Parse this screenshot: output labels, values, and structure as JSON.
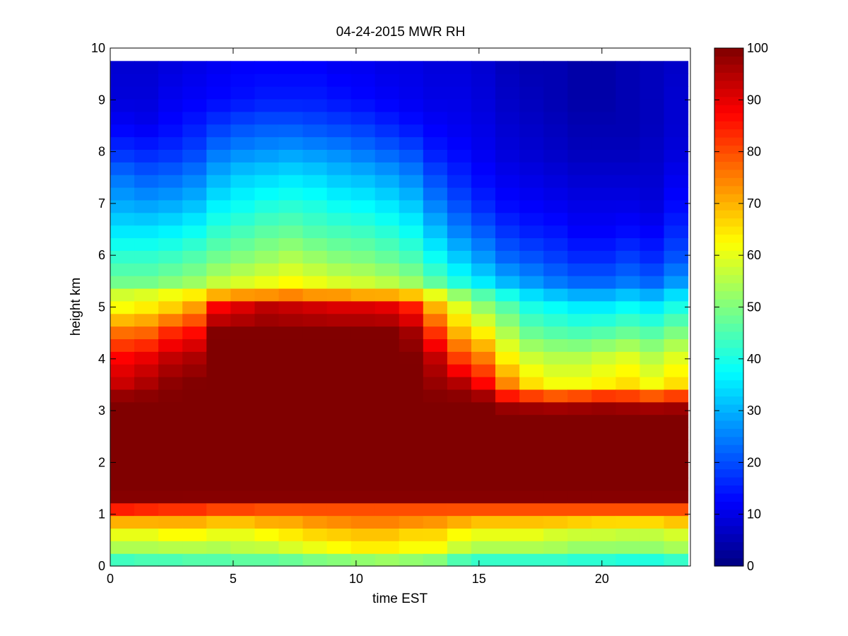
{
  "chart_data": {
    "type": "heatmap",
    "title": "04-24-2015 MWR RH",
    "xlabel": "time EST",
    "ylabel": "height km",
    "xlim": [
      0,
      23.6
    ],
    "ylim": [
      0,
      10
    ],
    "xticks": [
      0,
      5,
      10,
      15,
      20
    ],
    "yticks": [
      0,
      1,
      2,
      3,
      4,
      5,
      6,
      7,
      8,
      9,
      10
    ],
    "colorbar": {
      "colormap": "jet",
      "range": [
        0,
        100
      ],
      "ticks": [
        0,
        10,
        20,
        30,
        40,
        50,
        60,
        70,
        80,
        90,
        100
      ]
    },
    "data_extent": {
      "x": [
        0,
        23.5
      ],
      "y": [
        0,
        9.75
      ]
    },
    "time_bins": 24,
    "height_bins": 40,
    "profile_heights_km": [
      0,
      0.25,
      0.6,
      0.9,
      1.1,
      1.25,
      1.35,
      3.0,
      3.2,
      3.5,
      4.0,
      4.5,
      5.0,
      5.3,
      5.5,
      6.0,
      6.5,
      7.0,
      7.5,
      8.0,
      8.5,
      9.0,
      9.75
    ],
    "rh_profiles_percent": {
      "0": [
        36,
        52,
        60,
        72,
        85,
        93,
        100,
        100,
        100,
        93,
        88,
        77,
        62,
        57,
        48,
        42,
        35,
        29,
        24,
        17,
        12,
        9,
        8
      ],
      "1": [
        38,
        52,
        60,
        72,
        84,
        93,
        100,
        100,
        100,
        96,
        90,
        78,
        64,
        58,
        48,
        42,
        35,
        28,
        22,
        16,
        11,
        9,
        8
      ],
      "2": [
        38,
        52,
        62,
        72,
        83,
        93,
        100,
        100,
        100,
        99,
        94,
        84,
        67,
        60,
        50,
        43,
        36,
        29,
        23,
        17,
        13,
        11,
        9
      ],
      "3": [
        40,
        52,
        62,
        72,
        83,
        92,
        100,
        100,
        100,
        100,
        96,
        87,
        72,
        62,
        52,
        45,
        38,
        31,
        25,
        19,
        15,
        12,
        10
      ],
      "4": [
        40,
        52,
        60,
        70,
        81,
        92,
        100,
        100,
        100,
        100,
        100,
        100,
        88,
        66,
        56,
        48,
        42,
        36,
        30,
        24,
        18,
        13,
        11
      ],
      "5": [
        40,
        54,
        60,
        70,
        81,
        93,
        100,
        100,
        100,
        100,
        100,
        100,
        91,
        68,
        58,
        50,
        44,
        38,
        33,
        26,
        20,
        14,
        12
      ],
      "6": [
        40,
        54,
        62,
        72,
        80,
        93,
        100,
        100,
        100,
        100,
        100,
        100,
        94,
        68,
        60,
        52,
        46,
        40,
        34,
        27,
        21,
        15,
        12
      ],
      "7": [
        40,
        56,
        64,
        72,
        80,
        93,
        100,
        100,
        100,
        100,
        100,
        100,
        93,
        70,
        62,
        54,
        47,
        41,
        35,
        28,
        21,
        15,
        12
      ],
      "8": [
        42,
        58,
        66,
        74,
        80,
        93,
        100,
        100,
        100,
        100,
        100,
        100,
        92,
        68,
        60,
        52,
        45,
        40,
        34,
        27,
        20,
        15,
        12
      ],
      "9": [
        42,
        60,
        67,
        75,
        80,
        93,
        100,
        100,
        100,
        100,
        100,
        100,
        91,
        68,
        58,
        50,
        44,
        38,
        32,
        26,
        19,
        14,
        11
      ],
      "10": [
        42,
        62,
        68,
        76,
        80,
        93,
        100,
        100,
        100,
        100,
        100,
        100,
        91,
        66,
        57,
        49,
        43,
        37,
        31,
        24,
        18,
        13,
        11
      ],
      "11": [
        44,
        62,
        68,
        76,
        80,
        93,
        100,
        100,
        100,
        100,
        100,
        100,
        90,
        66,
        55,
        47,
        41,
        35,
        29,
        22,
        16,
        12,
        10
      ],
      "12": [
        44,
        60,
        66,
        75,
        80,
        93,
        100,
        100,
        100,
        100,
        100,
        97,
        85,
        64,
        52,
        44,
        38,
        32,
        26,
        20,
        14,
        11,
        10
      ],
      "13": [
        42,
        60,
        66,
        74,
        80,
        93,
        100,
        100,
        100,
        98,
        94,
        83,
        70,
        58,
        46,
        38,
        31,
        25,
        20,
        15,
        12,
        10,
        9
      ],
      "14": [
        36,
        55,
        62,
        72,
        80,
        93,
        100,
        100,
        100,
        96,
        82,
        70,
        60,
        50,
        40,
        32,
        25,
        20,
        16,
        13,
        11,
        10,
        9
      ],
      "15": [
        34,
        52,
        60,
        70,
        80,
        93,
        100,
        100,
        100,
        88,
        76,
        64,
        52,
        44,
        35,
        27,
        21,
        16,
        13,
        11,
        10,
        9,
        8
      ],
      "16": [
        34,
        52,
        60,
        70,
        80,
        93,
        100,
        100,
        90,
        75,
        64,
        55,
        46,
        38,
        30,
        22,
        17,
        13,
        11,
        9,
        8,
        7,
        6
      ],
      "17": [
        34,
        52,
        60,
        70,
        80,
        92,
        100,
        100,
        88,
        66,
        58,
        48,
        40,
        33,
        27,
        20,
        15,
        12,
        10,
        8,
        7,
        6,
        5
      ],
      "18": [
        34,
        52,
        58,
        70,
        80,
        92,
        100,
        100,
        86,
        62,
        56,
        46,
        38,
        30,
        24,
        18,
        14,
        11,
        9,
        7,
        6,
        5,
        5
      ],
      "19": [
        34,
        50,
        57,
        69,
        80,
        92,
        100,
        100,
        88,
        62,
        56,
        45,
        36,
        28,
        22,
        16,
        12,
        10,
        8,
        6,
        5,
        4,
        4
      ],
      "20": [
        34,
        50,
        57,
        68,
        80,
        92,
        100,
        100,
        90,
        64,
        58,
        46,
        36,
        28,
        22,
        16,
        12,
        10,
        8,
        6,
        5,
        4,
        4
      ],
      "21": [
        32,
        50,
        56,
        68,
        80,
        92,
        100,
        100,
        88,
        66,
        60,
        48,
        38,
        30,
        24,
        18,
        13,
        10,
        8,
        6,
        5,
        5,
        5
      ],
      "22": [
        32,
        50,
        56,
        68,
        80,
        92,
        100,
        100,
        86,
        62,
        56,
        46,
        36,
        28,
        22,
        16,
        12,
        9,
        8,
        7,
        6,
        6,
        6
      ],
      "23": [
        34,
        52,
        58,
        70,
        80,
        92,
        100,
        100,
        88,
        66,
        60,
        50,
        40,
        33,
        27,
        20,
        16,
        13,
        11,
        9,
        8,
        8,
        7
      ]
    }
  }
}
